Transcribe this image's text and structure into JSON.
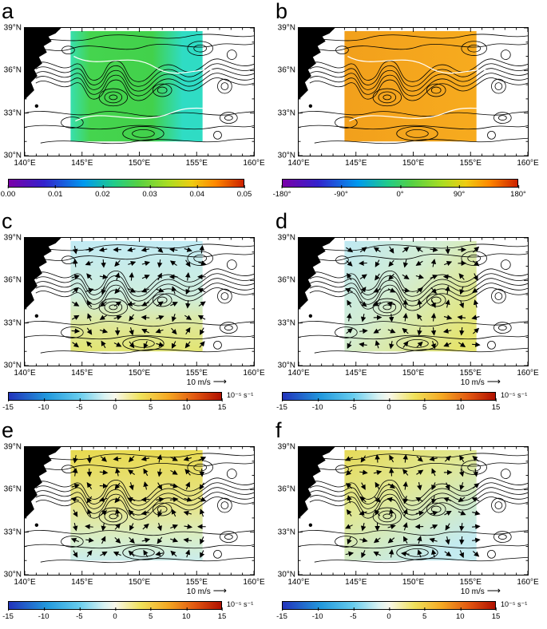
{
  "figure": {
    "panel_letters": [
      "a",
      "b",
      "c",
      "d",
      "e",
      "f"
    ]
  },
  "axis": {
    "x_ticks": [
      "140°E",
      "145°E",
      "150°E",
      "155°E",
      "160°E"
    ],
    "y_ticks": [
      "39°N",
      "36°N",
      "33°N",
      "30°N"
    ]
  },
  "colorbars": {
    "a": {
      "ticks": [
        "0.00",
        "0.01",
        "0.02",
        "0.03",
        "0.04",
        "0.05"
      ],
      "gradient": [
        "#7a00a8 0%",
        "#3322cc 15%",
        "#0099ee 32%",
        "#22cc88 45%",
        "#55d044 55%",
        "#aadd22 68%",
        "#eecc11 78%",
        "#ff8800 88%",
        "#cc2200 100%"
      ]
    },
    "b": {
      "ticks": [
        "-180°",
        "-90°",
        "0°",
        "90°",
        "180°"
      ],
      "gradient": [
        "#7a00a8 0%",
        "#3322cc 15%",
        "#0099ee 32%",
        "#22cc88 45%",
        "#55d044 55%",
        "#aadd22 68%",
        "#eecc11 78%",
        "#ff8800 88%",
        "#cc2200 100%"
      ]
    },
    "cf": {
      "ticks": [
        "-15",
        "-10",
        "-5",
        "0",
        "5",
        "10",
        "15"
      ],
      "gradient": [
        "#2233bb 0%",
        "#2299dd 18%",
        "#66ccee 33%",
        "#d8f2f2 45%",
        "#f8f8ec 50%",
        "#f0e25c 62%",
        "#f5a823 75%",
        "#e05510 88%",
        "#b01000 100%"
      ],
      "unit": "10⁻⁵ s⁻¹",
      "scale_label": "10 m/s",
      "scale_arrow": "⟶"
    }
  },
  "colors": {
    "land": "#000000",
    "contour": "#000000",
    "white_contour": "#ffffff",
    "patch_a_green": "#42d14b",
    "patch_a_cyan": "#2fdcc4",
    "patch_b_orange": "#f5a71e",
    "patch_cd_blue": "#c2ebf4",
    "patch_cd_yellow": "#e4e573",
    "patch_ef_yellow": "#e7da52",
    "patch_ef_cyan": "#c6ecee"
  },
  "chart_data": [
    {
      "panel": "a",
      "type": "heatmap",
      "x_ticks": [
        "140°E",
        "145°E",
        "150°E",
        "155°E",
        "160°E"
      ],
      "y_ticks": [
        "39°N",
        "36°N",
        "33°N",
        "30°N"
      ],
      "colorbar_ticks": [
        0.0,
        0.01,
        0.02,
        0.03,
        0.04,
        0.05
      ],
      "overlay": "black contour field over green-cyan patch"
    },
    {
      "panel": "b",
      "type": "heatmap",
      "x_ticks": [
        "140°E",
        "145°E",
        "150°E",
        "155°E",
        "160°E"
      ],
      "y_ticks": [
        "39°N",
        "36°N",
        "33°N",
        "30°N"
      ],
      "colorbar_ticks": [
        -180,
        -90,
        0,
        90,
        180
      ],
      "colorbar_tick_labels": [
        "-180°",
        "-90°",
        "0°",
        "90°",
        "180°"
      ],
      "overlay": "black contour field over orange patch"
    },
    {
      "panel": "c",
      "type": "heatmap",
      "colorbar_ticks": [
        -15,
        -10,
        -5,
        0,
        5,
        10,
        15
      ],
      "colorbar_unit": "10⁻⁵ s⁻¹",
      "vector_scale_label": "10 m/s",
      "overlay": "vector arrows over pale blue-yellow patch"
    },
    {
      "panel": "d",
      "type": "heatmap",
      "colorbar_ticks": [
        -15,
        -10,
        -5,
        0,
        5,
        10,
        15
      ],
      "colorbar_unit": "10⁻⁵ s⁻¹",
      "vector_scale_label": "10 m/s",
      "overlay": "vector arrows over pale blue-yellow patch"
    },
    {
      "panel": "e",
      "type": "heatmap",
      "colorbar_ticks": [
        -15,
        -10,
        -5,
        0,
        5,
        10,
        15
      ],
      "colorbar_unit": "10⁻⁵ s⁻¹",
      "vector_scale_label": "10 m/s",
      "overlay": "vector arrows over yellow-cyan patch"
    },
    {
      "panel": "f",
      "type": "heatmap",
      "colorbar_ticks": [
        -15,
        -10,
        -5,
        0,
        5,
        10,
        15
      ],
      "colorbar_unit": "10⁻⁵ s⁻¹",
      "vector_scale_label": "10 m/s",
      "overlay": "vector arrows over yellow-cyan patch"
    }
  ]
}
